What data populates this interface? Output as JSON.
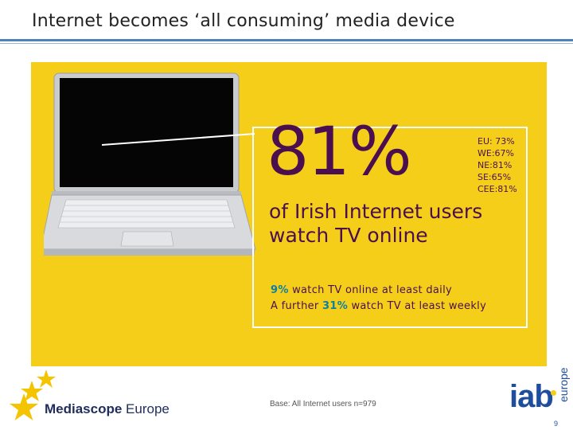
{
  "slide": {
    "title": "Internet becomes ‘all consuming’ media device",
    "page_number": "9"
  },
  "stat": {
    "value": "81%",
    "headline_line1": "of Irish Internet users",
    "headline_line2": "watch TV online",
    "regions": [
      "EU: 73%",
      "WE:67%",
      "NE:81%",
      "SE:65%",
      "CEE:81%"
    ]
  },
  "detail": {
    "line1_pct": "9%",
    "line1_rest": " watch TV online at least daily",
    "line2_prefix": "A further ",
    "line2_pct": "31%",
    "line2_rest": " watch TV at least weekly"
  },
  "footer": {
    "base_note": "Base: All Internet users n=979",
    "brand_left_bold": "Mediascope",
    "brand_left_rest": " Europe",
    "brand_right_main": "iab",
    "brand_right_sub": "europe"
  },
  "colors": {
    "panel_yellow": "#f5ce1a",
    "headline_purple": "#4b0f4f",
    "highlight_blue": "#0d7fa3",
    "brand_blue": "#1f4e9d"
  },
  "icons": {
    "laptop": "laptop-icon",
    "stars": "eu-stars-icon"
  }
}
